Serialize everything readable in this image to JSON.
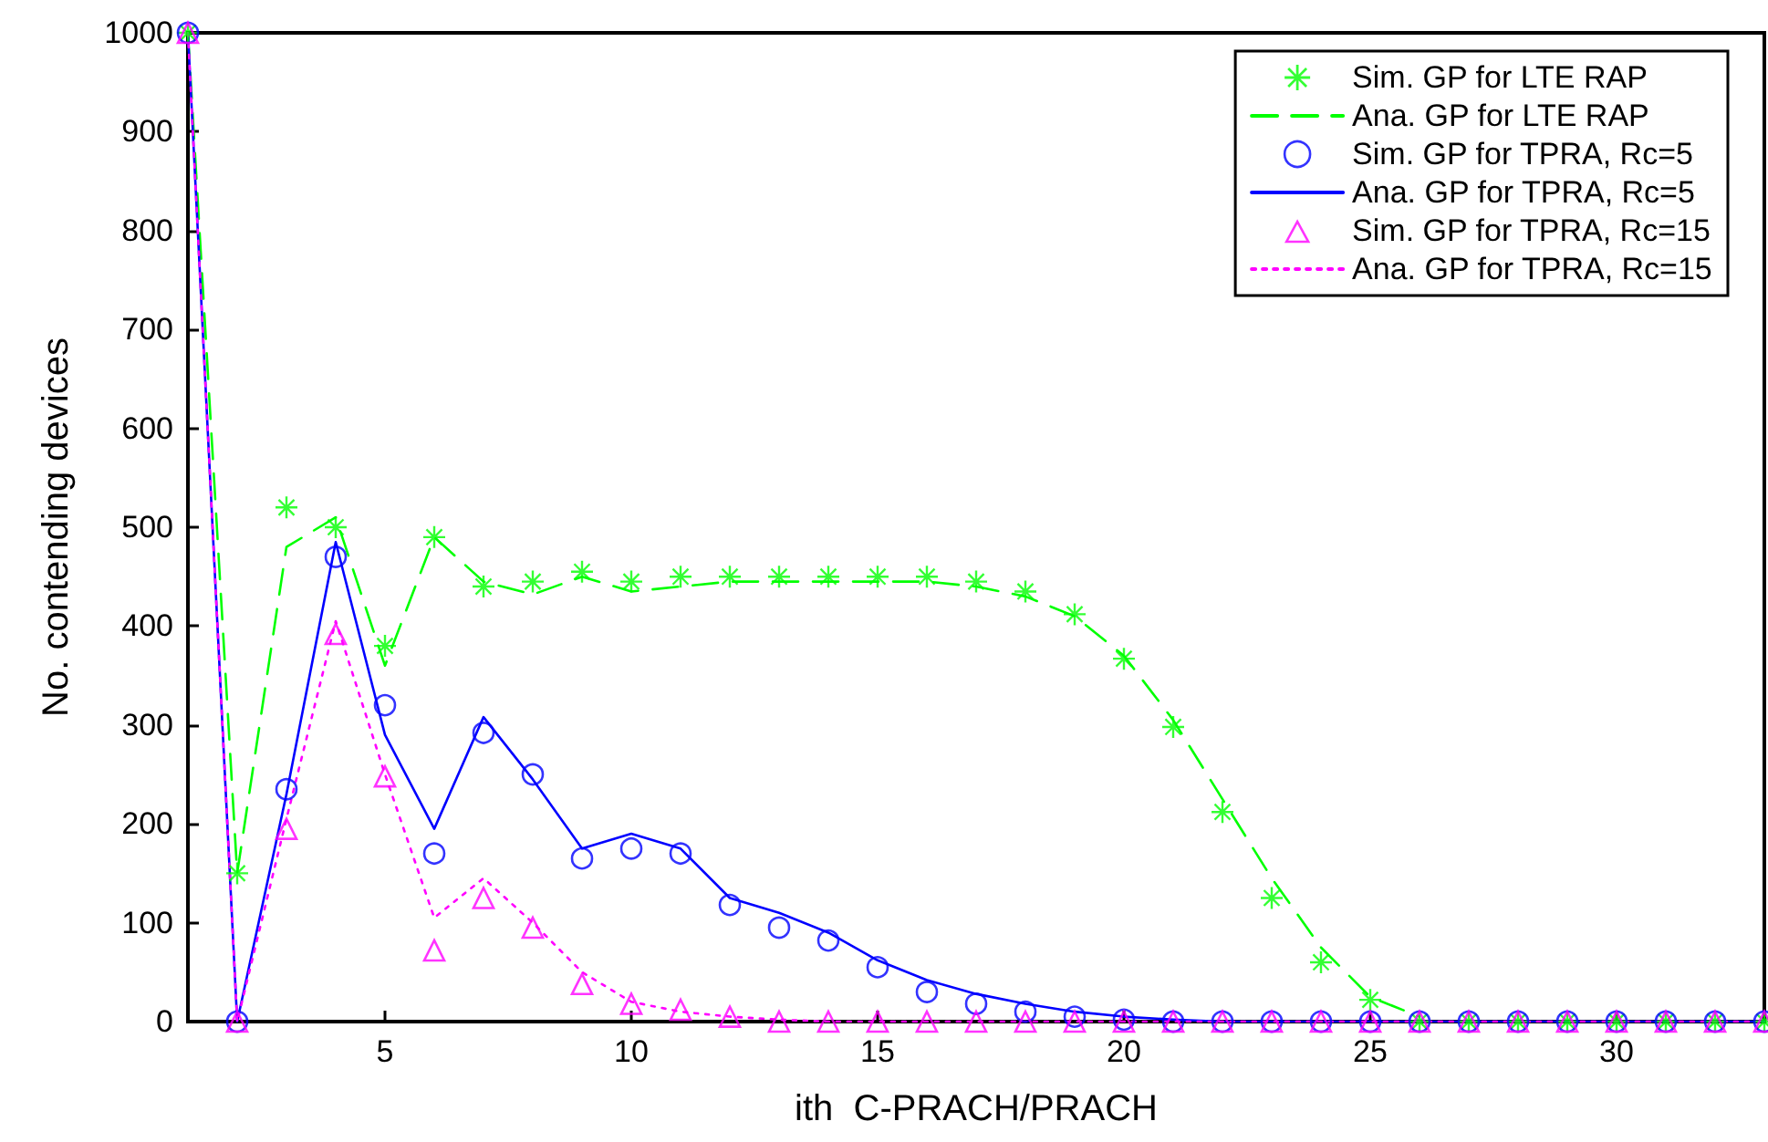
{
  "chart_data": {
    "type": "line",
    "xlabel": "ith  C-PRACH/PRACH",
    "ylabel": "No. contending devices",
    "x": [
      1,
      2,
      3,
      4,
      5,
      6,
      7,
      8,
      9,
      10,
      11,
      12,
      13,
      14,
      15,
      16,
      17,
      18,
      19,
      20,
      21,
      22,
      23,
      24,
      25,
      26,
      27,
      28,
      29,
      30,
      31,
      32,
      33
    ],
    "xlim": [
      1,
      33
    ],
    "xticks": [
      5,
      10,
      15,
      20,
      25,
      30
    ],
    "ylim": [
      0,
      1000
    ],
    "yticks": [
      0,
      100,
      200,
      300,
      400,
      500,
      600,
      700,
      800,
      900,
      1000
    ],
    "grid": false,
    "legend": "top right",
    "series": [
      {
        "name": "Sim. GP for LTE RAP",
        "type": "scatter",
        "marker": "star",
        "color": "#00ff00",
        "values": [
          1000,
          150,
          520,
          500,
          380,
          490,
          440,
          445,
          455,
          445,
          450,
          450,
          450,
          450,
          450,
          450,
          445,
          435,
          412,
          367,
          298,
          212,
          125,
          60,
          22,
          0,
          0,
          0,
          0,
          0,
          0,
          0,
          0
        ]
      },
      {
        "name": "Ana. GP for LTE RAP",
        "marker": "none",
        "line_style": "dashed",
        "color": "#00ff00",
        "values": [
          1000,
          150,
          480,
          510,
          360,
          490,
          445,
          432,
          450,
          435,
          440,
          445,
          445,
          445,
          445,
          445,
          440,
          430,
          410,
          370,
          305,
          225,
          145,
          75,
          25,
          5,
          null,
          null,
          null,
          null,
          null,
          null,
          null
        ]
      },
      {
        "name": "Sim. GP for TPRA, Rc=5",
        "type": "scatter",
        "marker": "circle",
        "color": "#0000ff",
        "values": [
          1000,
          0,
          235,
          470,
          320,
          170,
          292,
          250,
          165,
          175,
          170,
          118,
          95,
          82,
          55,
          30,
          18,
          10,
          5,
          2,
          0,
          0,
          0,
          0,
          0,
          0,
          0,
          0,
          0,
          0,
          0,
          0,
          0
        ]
      },
      {
        "name": "Ana. GP for TPRA, Rc=5",
        "marker": "none",
        "line_style": "solid",
        "color": "#0000ff",
        "values": [
          1000,
          0,
          230,
          485,
          290,
          195,
          308,
          245,
          175,
          190,
          175,
          125,
          110,
          90,
          62,
          42,
          28,
          18,
          10,
          5,
          2,
          0,
          0,
          0,
          0,
          0,
          0,
          0,
          0,
          0,
          0,
          0,
          0
        ]
      },
      {
        "name": "Sim. GP for TPRA, Rc=15",
        "type": "scatter",
        "marker": "triangle",
        "color": "#ff00ff",
        "values": [
          1000,
          0,
          195,
          392,
          248,
          72,
          125,
          95,
          38,
          18,
          12,
          5,
          0,
          0,
          0,
          0,
          0,
          0,
          0,
          0,
          0,
          0,
          0,
          0,
          0,
          0,
          0,
          0,
          0,
          0,
          0,
          0,
          0
        ]
      },
      {
        "name": "Ana. GP for TPRA, Rc=15",
        "marker": "none",
        "line_style": "dotted",
        "color": "#ff00ff",
        "values": [
          1000,
          0,
          205,
          405,
          250,
          105,
          145,
          100,
          50,
          20,
          10,
          5,
          2,
          0,
          0,
          0,
          0,
          0,
          0,
          0,
          0,
          0,
          0,
          0,
          0,
          0,
          0,
          0,
          0,
          0,
          0,
          0,
          0
        ]
      }
    ]
  }
}
